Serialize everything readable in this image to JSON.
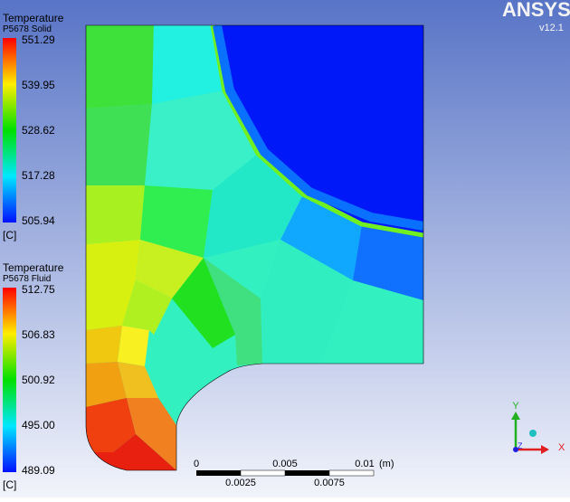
{
  "logo": {
    "name": "ANSYS",
    "version": "v12.1"
  },
  "legends": [
    {
      "title": "Temperature",
      "subtitle": "P5678 Solid",
      "levels": [
        "551.29",
        "539.95",
        "528.62",
        "517.28",
        "505.94"
      ],
      "unit": "[C]"
    },
    {
      "title": "Temperature",
      "subtitle": "P5678 Fluid",
      "levels": [
        "512.75",
        "506.83",
        "500.92",
        "495.00",
        "489.09"
      ],
      "unit": "[C]"
    }
  ],
  "scale_bar": {
    "top_labels": [
      "0",
      "0.005",
      "0.01"
    ],
    "unit": "(m)",
    "bottom_labels": [
      "0.0025",
      "0.0075"
    ]
  },
  "triad": {
    "y": "Y",
    "x": "X",
    "z": "Z"
  }
}
